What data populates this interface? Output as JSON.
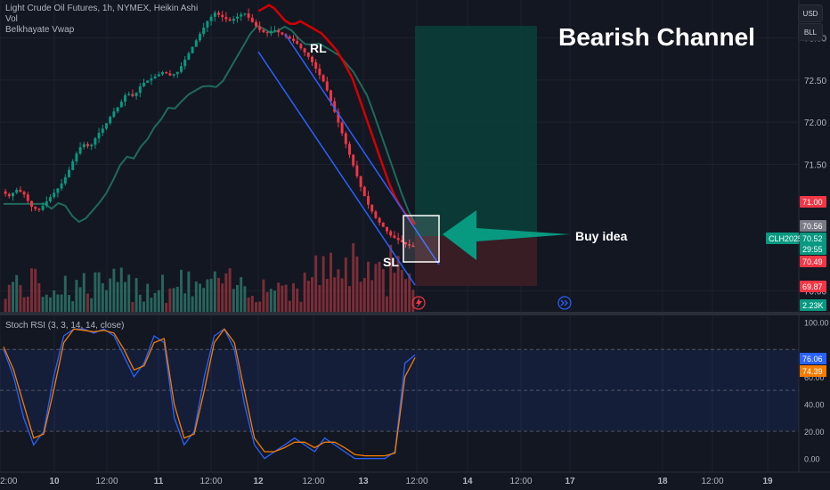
{
  "header": {
    "symbol_line": "Light Crude Oil Futures, 1h, NYMEX, Heikin Ashi",
    "vol_label": "Vol",
    "vwap_label": "Belkhayate Vwap",
    "currency_btn": "USD",
    "unit_btn": "BLL"
  },
  "annotations": {
    "title": "Bearish Channel",
    "rl": "RL",
    "sl": "SL",
    "buy": "Buy idea"
  },
  "price_axis": {
    "ticks": [
      "73.00",
      "72.50",
      "72.00",
      "71.50",
      "70.00"
    ],
    "labels": [
      {
        "text": "71.00",
        "color": "#f23645"
      },
      {
        "text": "70.56",
        "color": "#787b86"
      },
      {
        "text": "CLH2025",
        "color": "#089981"
      },
      {
        "text": "70.52",
        "color": "#089981"
      },
      {
        "text": "29:55",
        "color": "#089981"
      },
      {
        "text": "70.49",
        "color": "#f23645"
      },
      {
        "text": "69.87",
        "color": "#f23645"
      },
      {
        "text": "2.23K",
        "color": "#089981"
      }
    ]
  },
  "rsi_panel": {
    "label": "Stoch RSI (3, 3, 14, 14, close)",
    "ticks": [
      "100.00",
      "60.00",
      "40.00",
      "20.00",
      "0.00"
    ],
    "k_value": "76.06",
    "d_value": "74.39",
    "k_color": "#2962ff",
    "d_color": "#f57c00"
  },
  "time_axis": [
    "2:00",
    "10",
    "12:00",
    "11",
    "12:00",
    "12",
    "12:00",
    "13",
    "12:00",
    "14",
    "12:00",
    "17",
    "18",
    "12:00",
    "19"
  ],
  "chart_data": [
    {
      "type": "candlestick",
      "title": "Light Crude Oil Futures, 1h, NYMEX, Heikin Ashi",
      "ylim": [
        69.75,
        73.45
      ],
      "series": [
        {
          "name": "Light Crude Oil Futures",
          "close_path": [
            71.18,
            71.12,
            71.2,
            71.15,
            71.0,
            70.95,
            71.05,
            71.15,
            71.25,
            71.4,
            71.6,
            71.75,
            71.7,
            71.85,
            71.95,
            72.1,
            72.2,
            72.35,
            72.3,
            72.45,
            72.5,
            72.55,
            72.6,
            72.55,
            72.6,
            72.75,
            72.9,
            73.05,
            73.2,
            73.3,
            73.25,
            73.2,
            73.25,
            73.3,
            73.2,
            73.1,
            73.05,
            73.1,
            73.05,
            73.0,
            72.95,
            72.85,
            72.75,
            72.6,
            72.45,
            72.2,
            71.95,
            71.7,
            71.45,
            71.2,
            71.0,
            70.85,
            70.75,
            70.65,
            70.6,
            70.55,
            70.52
          ]
        },
        {
          "name": "Vol"
        },
        {
          "name": "Belkhayate Vwap"
        }
      ]
    },
    {
      "type": "line",
      "title": "Stoch RSI (3, 3, 14, 14, close)",
      "ylim": [
        -10,
        105
      ],
      "series": [
        {
          "name": "K",
          "values": [
            80,
            60,
            30,
            10,
            20,
            60,
            90,
            95,
            95,
            92,
            95,
            90,
            75,
            60,
            70,
            90,
            85,
            30,
            10,
            20,
            60,
            90,
            95,
            80,
            40,
            10,
            0,
            5,
            10,
            15,
            10,
            5,
            15,
            10,
            5,
            0,
            0,
            0,
            0,
            5,
            70,
            76
          ]
        },
        {
          "name": "D",
          "values": [
            82,
            65,
            40,
            15,
            18,
            50,
            85,
            95,
            94,
            93,
            94,
            92,
            80,
            65,
            68,
            85,
            88,
            40,
            15,
            18,
            50,
            85,
            95,
            85,
            50,
            15,
            5,
            5,
            8,
            12,
            12,
            8,
            12,
            12,
            8,
            3,
            2,
            2,
            2,
            4,
            60,
            74
          ]
        }
      ]
    }
  ]
}
